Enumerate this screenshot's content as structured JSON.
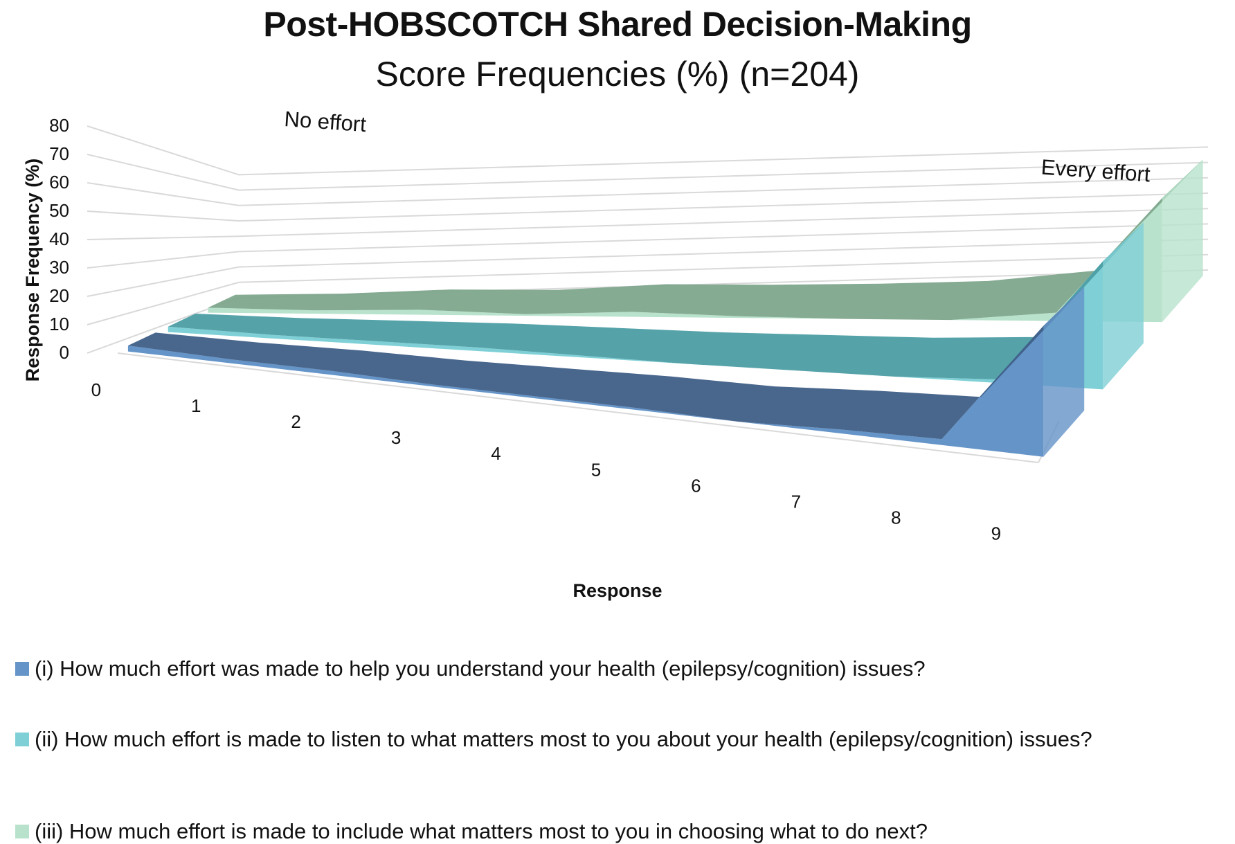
{
  "chart_data": {
    "type": "area",
    "title": "Post-HOBSCOTCH Shared Decision-Making",
    "subtitle": "Score Frequencies (%) (n=204)",
    "xlabel": "Response",
    "ylabel": "Response Frequency (%)",
    "categories": [
      "0",
      "1",
      "2",
      "3",
      "4",
      "5",
      "6",
      "7",
      "8",
      "9"
    ],
    "ylim": [
      0,
      80
    ],
    "yticks": [
      "0",
      "10",
      "20",
      "30",
      "40",
      "50",
      "60",
      "70",
      "80"
    ],
    "annotations": {
      "low": "No effort",
      "high": "Every effort"
    },
    "grid": true,
    "legend_position": "bottom",
    "series": [
      {
        "name": "(i) How much effort was made to help you understand your health (epilepsy/cognition) issues?",
        "values": [
          3,
          2,
          2,
          1,
          1,
          1,
          0,
          2,
          3,
          67
        ],
        "color": "#6494c8"
      },
      {
        "name": "(ii) How much effort is made to listen to what matters most to you about your health (epilepsy/cognition) issues?",
        "values": [
          3,
          2,
          2,
          2,
          1,
          0,
          0,
          0,
          2,
          71
        ],
        "color": "#7fd0d6"
      },
      {
        "name": "(iii) How much effort is made to include what matters most to you in choosing what to do next?",
        "values": [
          3,
          2,
          3,
          1,
          3,
          1,
          0,
          0,
          5,
          75
        ],
        "color": "#b8e2cc"
      }
    ]
  }
}
